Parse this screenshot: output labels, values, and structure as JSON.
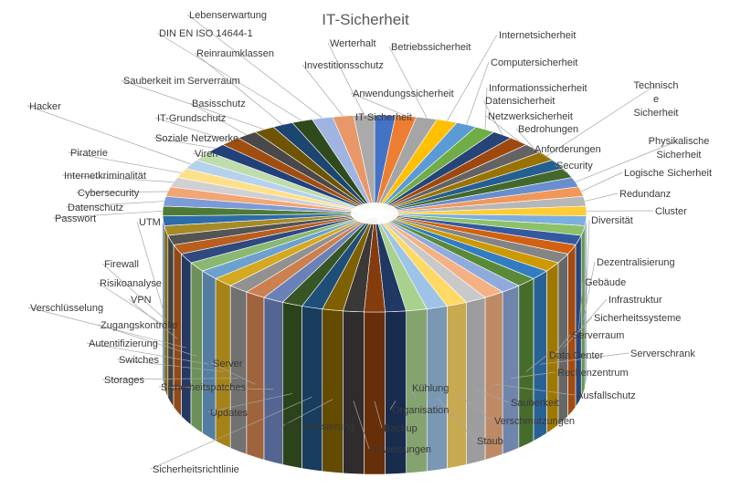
{
  "chart_data": {
    "type": "pie",
    "title": "IT-Sicherheit",
    "legend": "none",
    "categories": [
      "IT-Sicherheit",
      "Anwendungssicherheit",
      "Betriebssicherheit",
      "Internetsicherheit",
      "Computersicherheit",
      "Informationssicherheit",
      "Datensicherheit",
      "Netzwerksicherheit",
      "Bedrohungen",
      "Technische Sicherheit",
      "Anforderungen",
      "Security",
      "Physikalische Sicherheit",
      "Logische Sicherheit",
      "Redundanz",
      "Cluster",
      "Diversität",
      "Dezentralisierung",
      "Gebäude",
      "Infrastruktur",
      "Sicherheitssysteme",
      "Serverraum",
      "Serverschrank",
      "Data Center",
      "Rechenzentrum",
      "Ausfallschutz",
      "Sauberkeit",
      "Verschmutzungen",
      "Staub",
      "Kühlung",
      "Organisation",
      "Backup",
      "Anweisungen",
      "Sensibilisierung",
      "Sicherheitsrichtlinie",
      "Updates",
      "Sicherheitspatches",
      "Server",
      "Storages",
      "Switches",
      "Autentifizierung",
      "Zugangskontrolle",
      "Verschlüsselung",
      "VPN",
      "Risikoanalyse",
      "Firewall",
      "UTM",
      "Passwort",
      "Datenschutz",
      "Cybersecurity",
      "Internetkriminalität",
      "Piraterie",
      "Hacker",
      "Viren",
      "Soziale Netzwerke",
      "IT-Grundschutz",
      "Basisschutz",
      "Sauberkeit im Serverraum",
      "Reinraumklassen",
      "DIN EN ISO 14644-1",
      "Lebenserwartung",
      "Investitionsschutz",
      "Werterhalt"
    ],
    "values": [
      1,
      1,
      1,
      1,
      1,
      1,
      1,
      1,
      1,
      1,
      1,
      1,
      1,
      1,
      1,
      1,
      1,
      1,
      1,
      1,
      1,
      1,
      1,
      1,
      1,
      1,
      1,
      1,
      1,
      1,
      1,
      1,
      1,
      1,
      1,
      1,
      1,
      1,
      1,
      1,
      1,
      1,
      1,
      1,
      1,
      1,
      1,
      1,
      1,
      1,
      1,
      1,
      1,
      1,
      1,
      1,
      1,
      1,
      1,
      1,
      1,
      1,
      1
    ],
    "colors": [
      "#4472C4",
      "#ED7D31",
      "#A5A5A5",
      "#FFC000",
      "#5B9BD5",
      "#70AD47",
      "#264478",
      "#9E480E",
      "#636363",
      "#997300",
      "#255E91",
      "#43682B",
      "#698ED0",
      "#F1975A",
      "#B7B7B7",
      "#FFCD33",
      "#7CAFDD",
      "#8CC168",
      "#335AA1",
      "#D26012",
      "#848484",
      "#CC9A00",
      "#327DC2",
      "#5A8A39",
      "#8FAADC",
      "#F4B183",
      "#C9C9C9",
      "#FFD966",
      "#9DC3E6",
      "#A9D18E",
      "#1F3864",
      "#843C0C",
      "#3B3838",
      "#7F6000",
      "#1F4E79",
      "#375623",
      "#6A81B8",
      "#CC8050",
      "#919191",
      "#D4A81F",
      "#6CA0CF",
      "#8AB870",
      "#2E4A80",
      "#B85E1E",
      "#545454",
      "#A68A26",
      "#2C6CA8",
      "#4F7A35",
      "#7A9BD8",
      "#F2A575",
      "#D0D0D0",
      "#FFE08A",
      "#B4D2EC",
      "#BFDCAC",
      "#22407A",
      "#A04E10",
      "#4A4848",
      "#6E5400",
      "#1C4570",
      "#2F4B1E",
      "#9FB4E0",
      "#E89868",
      "#AAAAAA"
    ]
  }
}
